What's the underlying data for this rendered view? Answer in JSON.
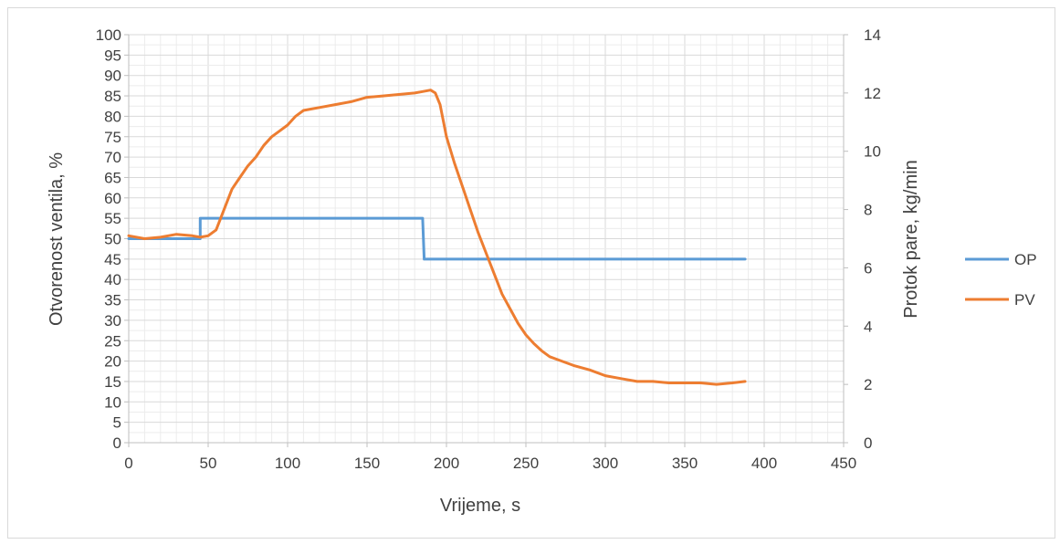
{
  "chart_data": {
    "type": "line",
    "xlabel": "Vrijeme, s",
    "ylabel_left": "Otvorenost ventila, %",
    "ylabel_right": "Protok pare, kg/min",
    "xlim": [
      0,
      450
    ],
    "ylim_left": [
      0,
      100
    ],
    "ylim_right": [
      0,
      14
    ],
    "x_ticks": [
      0,
      50,
      100,
      150,
      200,
      250,
      300,
      350,
      400,
      450
    ],
    "y_left_ticks": [
      0,
      5,
      10,
      15,
      20,
      25,
      30,
      35,
      40,
      45,
      50,
      55,
      60,
      65,
      70,
      75,
      80,
      85,
      90,
      95,
      100
    ],
    "y_right_ticks": [
      0,
      2,
      4,
      6,
      8,
      10,
      12,
      14
    ],
    "grid": true,
    "legend_position": "right",
    "series": [
      {
        "name": "OP",
        "axis": "left",
        "color": "#5b9bd5",
        "x": [
          0,
          45,
          45,
          185,
          186,
          388
        ],
        "y": [
          50,
          50,
          55,
          55,
          45,
          45
        ]
      },
      {
        "name": "PV",
        "axis": "right",
        "color": "#ed7d31",
        "x": [
          0,
          10,
          20,
          30,
          40,
          45,
          50,
          55,
          60,
          65,
          70,
          75,
          80,
          85,
          90,
          95,
          100,
          105,
          110,
          115,
          120,
          130,
          140,
          150,
          160,
          170,
          180,
          185,
          190,
          193,
          196,
          200,
          205,
          210,
          215,
          220,
          225,
          230,
          235,
          240,
          245,
          250,
          255,
          260,
          265,
          270,
          280,
          290,
          300,
          310,
          320,
          330,
          340,
          350,
          360,
          370,
          380,
          388
        ],
        "y": [
          7.1,
          7.0,
          7.05,
          7.15,
          7.1,
          7.05,
          7.1,
          7.3,
          8.0,
          8.7,
          9.1,
          9.5,
          9.8,
          10.2,
          10.5,
          10.7,
          10.9,
          11.2,
          11.4,
          11.45,
          11.5,
          11.6,
          11.7,
          11.85,
          11.9,
          11.95,
          12.0,
          12.05,
          12.1,
          12.0,
          11.6,
          10.5,
          9.6,
          8.8,
          8.0,
          7.2,
          6.5,
          5.8,
          5.1,
          4.6,
          4.1,
          3.7,
          3.4,
          3.15,
          2.95,
          2.85,
          2.65,
          2.5,
          2.3,
          2.2,
          2.1,
          2.1,
          2.05,
          2.05,
          2.05,
          2.0,
          2.05,
          2.1
        ]
      }
    ]
  }
}
